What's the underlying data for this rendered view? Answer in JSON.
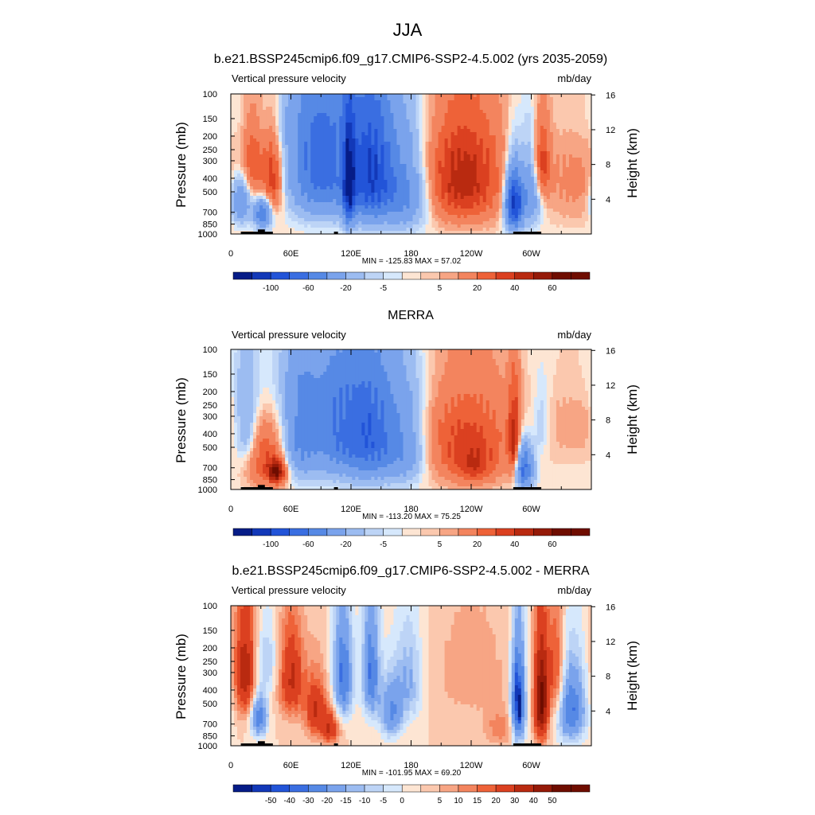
{
  "page_title": "JJA",
  "colors": {
    "pos": [
      "#fde5d3",
      "#fbc8ae",
      "#f7a584",
      "#f3845e",
      "#ee6238",
      "#db4020",
      "#b92a10",
      "#951a08",
      "#6f0d00"
    ],
    "neg": [
      "#d6e8fc",
      "#bdd4f6",
      "#9cbcf1",
      "#7aa3ec",
      "#5689e5",
      "#3a6ee1",
      "#2254d8",
      "#1238b8",
      "#061c87"
    ]
  },
  "chart_data": [
    {
      "type": "heatmap",
      "title": "b.e21.BSSP245cmip6.f09_g17.CMIP6-SSP2-4.5.002 (yrs 2035-2059)",
      "left_label": "Vertical pressure velocity",
      "right_label": "mb/day",
      "ylabel": "Pressure (mb)",
      "ylabel_right": "Height (km)",
      "stats": "MIN = -125.83  MAX =  57.02",
      "y_ticks": [
        "100",
        "150",
        "200",
        "250",
        "300",
        "400",
        "500",
        "700",
        "850",
        "1000"
      ],
      "height_ticks": [
        "16",
        "12",
        "8",
        "4"
      ],
      "x_ticks": [
        "0",
        "60E",
        "120E",
        "180",
        "120W",
        "60W"
      ],
      "colorbar_labels": [
        "-100",
        "-60",
        "-20",
        "-5",
        "5",
        "20",
        "40",
        "60"
      ],
      "levels": [
        -120,
        -100,
        -80,
        -60,
        -40,
        -20,
        -10,
        -5,
        -2,
        2,
        5,
        10,
        20,
        30,
        40,
        50,
        60,
        70
      ],
      "ylim": [
        1000,
        100
      ],
      "xlim": [
        0,
        360
      ],
      "features": [
        {
          "lon": 10,
          "width": 7,
          "p": 580,
          "pw": 160,
          "amp": -45
        },
        {
          "lon": 22,
          "width": 8,
          "p": 300,
          "pw": 160,
          "amp": 28
        },
        {
          "lon": 32,
          "width": 6,
          "p": 720,
          "pw": 120,
          "amp": -60
        },
        {
          "lon": 42,
          "width": 7,
          "p": 400,
          "pw": 200,
          "amp": 38
        },
        {
          "lon": 90,
          "width": 22,
          "p": 330,
          "pw": 250,
          "amp": -70
        },
        {
          "lon": 118,
          "width": 4,
          "p": 450,
          "pw": 250,
          "amp": -90
        },
        {
          "lon": 140,
          "width": 16,
          "p": 380,
          "pw": 260,
          "amp": -95
        },
        {
          "lon": 175,
          "width": 16,
          "p": 500,
          "pw": 250,
          "amp": -45
        },
        {
          "lon": 100,
          "width": 90,
          "p": 150,
          "pw": 80,
          "amp": -10
        },
        {
          "lon": 232,
          "width": 28,
          "p": 420,
          "pw": 260,
          "amp": 45
        },
        {
          "lon": 200,
          "width": 80,
          "p": 200,
          "pw": 120,
          "amp": 5
        },
        {
          "lon": 283,
          "width": 6,
          "p": 600,
          "pw": 200,
          "amp": -110
        },
        {
          "lon": 300,
          "width": 7,
          "p": 500,
          "pw": 220,
          "amp": -40
        },
        {
          "lon": 310,
          "width": 6,
          "p": 320,
          "pw": 150,
          "amp": 35
        },
        {
          "lon": 345,
          "width": 25,
          "p": 420,
          "pw": 260,
          "amp": 12
        }
      ]
    },
    {
      "type": "heatmap",
      "title": "MERRA",
      "left_label": "Vertical pressure velocity",
      "right_label": "mb/day",
      "ylabel": "Pressure (mb)",
      "ylabel_right": "Height (km)",
      "stats": "MIN = -113.20  MAX =  75.25",
      "y_ticks": [
        "100",
        "150",
        "200",
        "250",
        "300",
        "400",
        "500",
        "700",
        "850",
        "1000"
      ],
      "height_ticks": [
        "16",
        "12",
        "8",
        "4"
      ],
      "x_ticks": [
        "0",
        "60E",
        "120E",
        "180",
        "120W",
        "60W"
      ],
      "colorbar_labels": [
        "-100",
        "-60",
        "-20",
        "-5",
        "5",
        "20",
        "40",
        "60"
      ],
      "levels": [
        -120,
        -100,
        -80,
        -60,
        -40,
        -20,
        -10,
        -5,
        -2,
        2,
        5,
        10,
        20,
        30,
        40,
        50,
        60,
        70
      ],
      "ylim": [
        1000,
        100
      ],
      "xlim": [
        0,
        360
      ],
      "features": [
        {
          "lon": 15,
          "width": 8,
          "p": 350,
          "pw": 200,
          "amp": -25
        },
        {
          "lon": 35,
          "width": 14,
          "p": 620,
          "pw": 220,
          "amp": 30
        },
        {
          "lon": 46,
          "width": 6,
          "p": 760,
          "pw": 100,
          "amp": 50
        },
        {
          "lon": 70,
          "width": 12,
          "p": 400,
          "pw": 250,
          "amp": -45
        },
        {
          "lon": 105,
          "width": 18,
          "p": 380,
          "pw": 260,
          "amp": -50
        },
        {
          "lon": 140,
          "width": 18,
          "p": 420,
          "pw": 260,
          "amp": -70
        },
        {
          "lon": 175,
          "width": 15,
          "p": 500,
          "pw": 250,
          "amp": -35
        },
        {
          "lon": 100,
          "width": 90,
          "p": 160,
          "pw": 90,
          "amp": -8
        },
        {
          "lon": 235,
          "width": 35,
          "p": 450,
          "pw": 280,
          "amp": 32
        },
        {
          "lon": 243,
          "width": 12,
          "p": 700,
          "pw": 140,
          "amp": 20
        },
        {
          "lon": 283,
          "width": 4,
          "p": 500,
          "pw": 250,
          "amp": 45
        },
        {
          "lon": 292,
          "width": 7,
          "p": 700,
          "pw": 180,
          "amp": -70
        },
        {
          "lon": 310,
          "width": 6,
          "p": 350,
          "pw": 150,
          "amp": -12
        },
        {
          "lon": 345,
          "width": 25,
          "p": 300,
          "pw": 200,
          "amp": 8
        }
      ]
    },
    {
      "type": "heatmap",
      "title": "b.e21.BSSP245cmip6.f09_g17.CMIP6-SSP2-4.5.002 - MERRA",
      "left_label": "Vertical pressure velocity",
      "right_label": "mb/day",
      "ylabel": "Pressure (mb)",
      "ylabel_right": "Height (km)",
      "stats": "MIN = -101.95  MAX =  69.20",
      "y_ticks": [
        "100",
        "150",
        "200",
        "250",
        "300",
        "400",
        "500",
        "700",
        "850",
        "1000"
      ],
      "height_ticks": [
        "16",
        "12",
        "8",
        "4"
      ],
      "x_ticks": [
        "0",
        "60E",
        "120E",
        "180",
        "120W",
        "60W"
      ],
      "colorbar_labels": [
        "-50",
        "-40",
        "-30",
        "-20",
        "-15",
        "-10",
        "-5",
        "0",
        "5",
        "10",
        "15",
        "20",
        "30",
        "40",
        "50"
      ],
      "levels": [
        -55,
        -50,
        -45,
        -40,
        -30,
        -20,
        -15,
        -10,
        -5,
        0,
        5,
        10,
        15,
        20,
        30,
        40,
        50,
        55
      ],
      "ylim": [
        1000,
        100
      ],
      "xlim": [
        0,
        360
      ],
      "features": [
        {
          "lon": 15,
          "width": 8,
          "p": 300,
          "pw": 200,
          "amp": 38
        },
        {
          "lon": 28,
          "width": 6,
          "p": 620,
          "pw": 150,
          "amp": -40
        },
        {
          "lon": 35,
          "width": 10,
          "p": 250,
          "pw": 120,
          "amp": -15
        },
        {
          "lon": 60,
          "width": 9,
          "p": 330,
          "pw": 180,
          "amp": 32
        },
        {
          "lon": 85,
          "width": 8,
          "p": 560,
          "pw": 200,
          "amp": 30
        },
        {
          "lon": 100,
          "width": 6,
          "p": 750,
          "pw": 150,
          "amp": 28
        },
        {
          "lon": 112,
          "width": 7,
          "p": 320,
          "pw": 200,
          "amp": -40
        },
        {
          "lon": 140,
          "width": 6,
          "p": 300,
          "pw": 200,
          "amp": -38
        },
        {
          "lon": 160,
          "width": 8,
          "p": 580,
          "pw": 200,
          "amp": -30
        },
        {
          "lon": 178,
          "width": 10,
          "p": 350,
          "pw": 200,
          "amp": -20
        },
        {
          "lon": 240,
          "width": 30,
          "p": 300,
          "pw": 220,
          "amp": 8
        },
        {
          "lon": 270,
          "width": 12,
          "p": 760,
          "pw": 150,
          "amp": 14
        },
        {
          "lon": 287,
          "width": 5,
          "p": 500,
          "pw": 280,
          "amp": -60
        },
        {
          "lon": 310,
          "width": 5,
          "p": 480,
          "pw": 280,
          "amp": 55
        },
        {
          "lon": 340,
          "width": 10,
          "p": 550,
          "pw": 250,
          "amp": -40
        },
        {
          "lon": 325,
          "width": 6,
          "p": 300,
          "pw": 200,
          "amp": 25
        }
      ]
    }
  ]
}
